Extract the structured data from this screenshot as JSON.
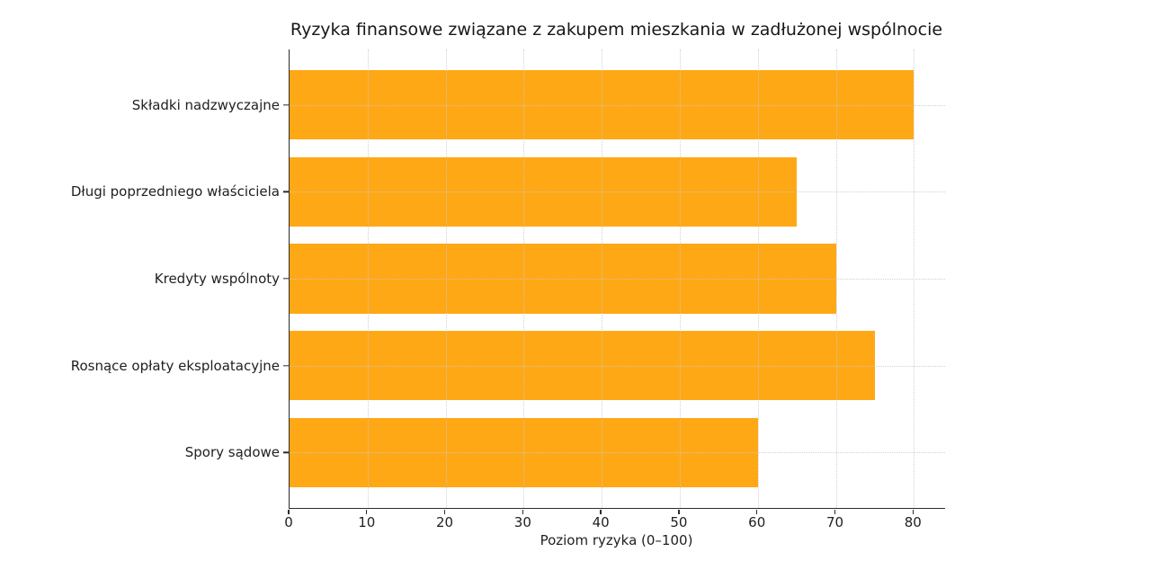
{
  "chart_data": {
    "type": "bar",
    "orientation": "horizontal",
    "title": "Ryzyka finansowe związane z zakupem mieszkania w zadłużonej wspólnocie",
    "categories": [
      "Składki nadzwyczajne",
      "Długi poprzedniego właściciela",
      "Kredyty wspólnoty",
      "Rosnące opłaty eksploatacyjne",
      "Spory sądowe"
    ],
    "values": [
      80,
      65,
      70,
      75,
      60
    ],
    "xlabel": "Poziom ryzyka (0–100)",
    "ylabel": "",
    "xlim": [
      0,
      84
    ],
    "xticks": [
      0,
      10,
      20,
      30,
      40,
      50,
      60,
      70,
      80
    ],
    "bar_color": "#FFA815",
    "grid": true,
    "grid_style": "dotted",
    "grid_color": "#c9c9c9",
    "spine_color": "#2d2d2d",
    "text_color": "#1f1f1f",
    "background": "#ffffff",
    "legend": "none"
  }
}
